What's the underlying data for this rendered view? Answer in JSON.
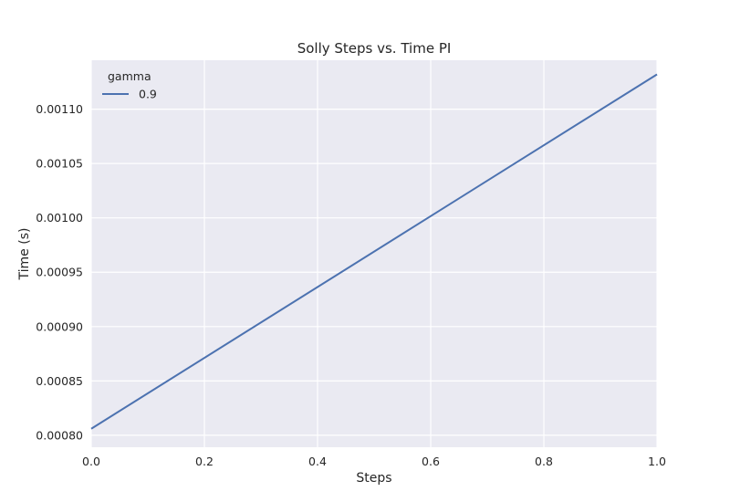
{
  "chart_data": {
    "type": "line",
    "title": "Solly Steps vs. Time PI",
    "xlabel": "Steps",
    "ylabel": "Time (s)",
    "xlim": [
      0.0,
      1.0
    ],
    "ylim": [
      0.000789,
      0.001145
    ],
    "x_ticks": [
      0.0,
      0.2,
      0.4,
      0.6,
      0.8,
      1.0
    ],
    "x_tick_labels": [
      "0.0",
      "0.2",
      "0.4",
      "0.6",
      "0.8",
      "1.0"
    ],
    "y_ticks": [
      0.0008,
      0.00085,
      0.0009,
      0.00095,
      0.001,
      0.00105,
      0.0011
    ],
    "y_tick_labels": [
      "0.00080",
      "0.00085",
      "0.00090",
      "0.00095",
      "0.00100",
      "0.00105",
      "0.00110"
    ],
    "grid": true,
    "legend": {
      "title": "gamma",
      "placement": "top-left"
    },
    "series": [
      {
        "name": "0.9",
        "color": "#4c72b0",
        "x": [
          0.0,
          1.0
        ],
        "y": [
          0.000806,
          0.001132
        ]
      }
    ]
  }
}
